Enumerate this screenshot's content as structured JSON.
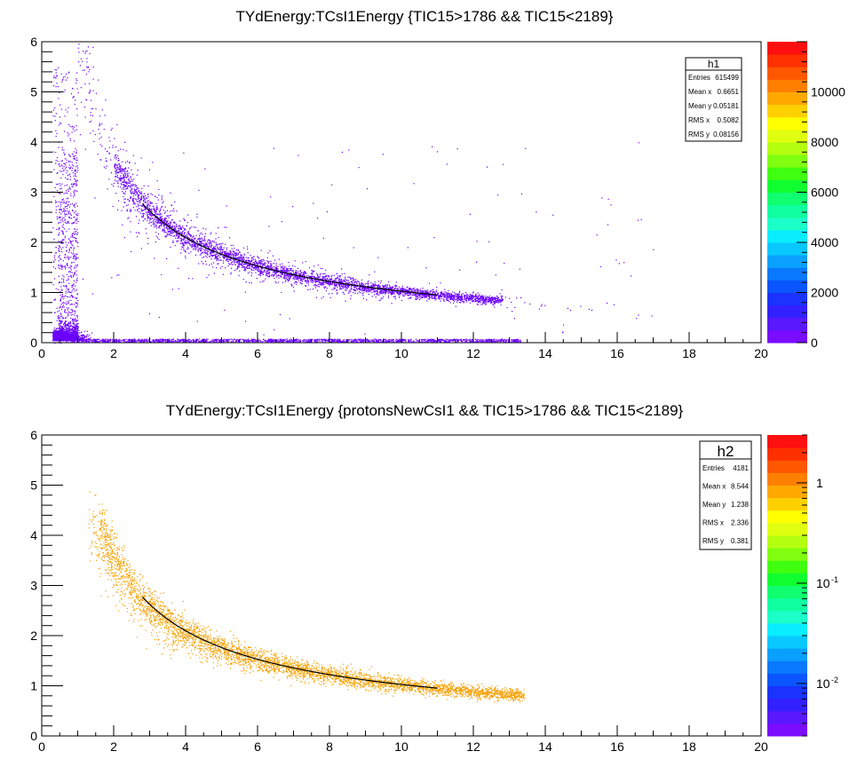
{
  "chart_data": [
    {
      "type": "scatter",
      "title": "TYdEnergy:TCsI1Energy {TIC15>1786 && TIC15<2189}",
      "xlim": [
        0,
        20
      ],
      "ylim": [
        0,
        6
      ],
      "x_ticks": [
        "0",
        "2",
        "4",
        "6",
        "8",
        "10",
        "12",
        "14",
        "16",
        "18",
        "20"
      ],
      "y_ticks": [
        "0",
        "1",
        "2",
        "3",
        "4",
        "5",
        "6"
      ],
      "grid": false,
      "marker_color": "#6a00ff",
      "fit_curve": {
        "color": "#000000",
        "x": [
          2.8,
          3.5,
          4.5,
          5.5,
          6.5,
          7.5,
          8.5,
          9.5,
          10.5,
          11.0
        ],
        "y": [
          2.77,
          2.48,
          2.15,
          1.88,
          1.66,
          1.48,
          1.32,
          1.17,
          1.03,
          0.97
        ]
      },
      "stats": {
        "name": "h1",
        "rows": [
          {
            "label": "Entries",
            "value": "615499"
          },
          {
            "label": "Mean x",
            "value": "0.6651"
          },
          {
            "label": "Mean y",
            "value": "0.05181"
          },
          {
            "label": "RMS x",
            "value": "0.5082"
          },
          {
            "label": "RMS y",
            "value": "0.08156"
          }
        ]
      },
      "colorbar": {
        "scale": "linear",
        "range": [
          0,
          12000
        ],
        "ticks": [
          "0",
          "2000",
          "4000",
          "6000",
          "8000",
          "10000"
        ]
      }
    },
    {
      "type": "scatter",
      "title": "TYdEnergy:TCsI1Energy {protonsNewCsI1 && TIC15>1786 && TIC15<2189}",
      "xlim": [
        0,
        20
      ],
      "ylim": [
        0,
        6
      ],
      "x_ticks": [
        "0",
        "2",
        "4",
        "6",
        "8",
        "10",
        "12",
        "14",
        "16",
        "18",
        "20"
      ],
      "y_ticks": [
        "0",
        "1",
        "2",
        "3",
        "4",
        "5",
        "6"
      ],
      "grid": false,
      "marker_color": "#f5a000",
      "fit_curve": {
        "color": "#000000",
        "x": [
          2.8,
          3.5,
          4.5,
          5.5,
          6.5,
          7.5,
          8.5,
          9.5,
          10.5,
          11.0
        ],
        "y": [
          2.77,
          2.48,
          2.15,
          1.88,
          1.66,
          1.48,
          1.32,
          1.17,
          1.03,
          0.97
        ]
      },
      "stats": {
        "name": "h2",
        "rows": [
          {
            "label": "Entries",
            "value": "4181"
          },
          {
            "label": "Mean x",
            "value": "8.544"
          },
          {
            "label": "Mean y",
            "value": "1.238"
          },
          {
            "label": "RMS x",
            "value": "2.336"
          },
          {
            "label": "RMS y",
            "value": "0.381"
          }
        ]
      },
      "colorbar": {
        "scale": "log",
        "range": [
          0.003,
          3
        ],
        "ticks": [
          {
            "base": "1",
            "exp": ""
          },
          {
            "base": "10",
            "exp": "-1"
          },
          {
            "base": "10",
            "exp": "-2"
          }
        ]
      }
    }
  ],
  "colors": {
    "palette": [
      "#7a0cff",
      "#5a18ff",
      "#3320ff",
      "#1a33ff",
      "#0b55ff",
      "#0a78ff",
      "#0aa0ff",
      "#08c8ff",
      "#08eeff",
      "#1cffc8",
      "#10ffa0",
      "#10ff70",
      "#10ff30",
      "#40ff10",
      "#80ff10",
      "#b4ff10",
      "#e0ff10",
      "#ffff00",
      "#ffd000",
      "#ffa800",
      "#ff8000",
      "#ff5800",
      "#ff3000",
      "#ff1010"
    ]
  }
}
